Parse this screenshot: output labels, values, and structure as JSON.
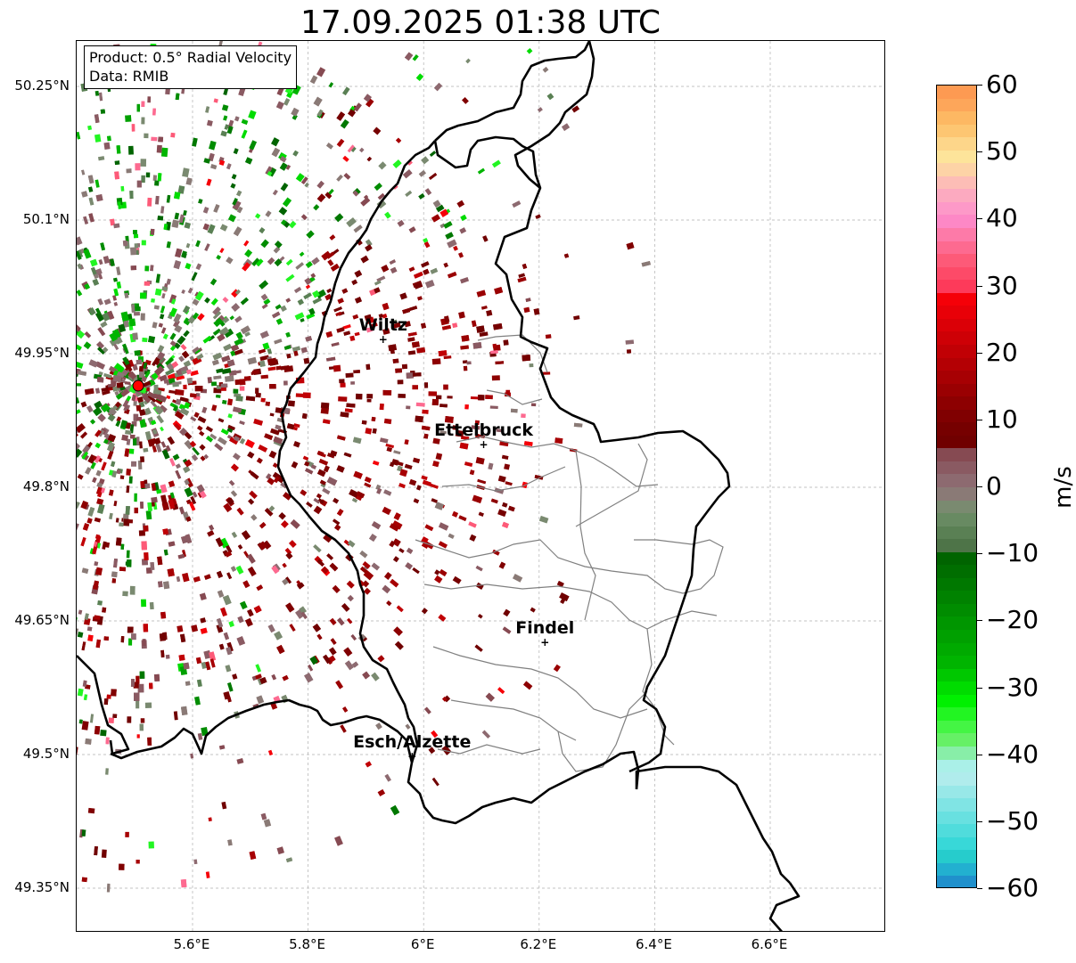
{
  "title": "17.09.2025 01:38 UTC",
  "info": {
    "product": "Product: 0.5° Radial Velocity",
    "data": "Data: RMIB"
  },
  "map": {
    "lon_range": [
      5.4,
      6.8
    ],
    "lat_range": [
      49.3,
      50.3
    ],
    "lat_ticks": [
      {
        "value": 50.25,
        "label": "50.25°N"
      },
      {
        "value": 50.1,
        "label": "50.1°N"
      },
      {
        "value": 49.95,
        "label": "49.95°N"
      },
      {
        "value": 49.8,
        "label": "49.8°N"
      },
      {
        "value": 49.65,
        "label": "49.65°N"
      },
      {
        "value": 49.5,
        "label": "49.5°N"
      },
      {
        "value": 49.35,
        "label": "49.35°N"
      }
    ],
    "lon_ticks": [
      {
        "value": 5.6,
        "label": "5.6°E"
      },
      {
        "value": 5.8,
        "label": "5.8°E"
      },
      {
        "value": 6.0,
        "label": "6°E"
      },
      {
        "value": 6.2,
        "label": "6.2°E"
      },
      {
        "value": 6.4,
        "label": "6.4°E"
      },
      {
        "value": 6.6,
        "label": "6.6°E"
      }
    ],
    "radar_site": {
      "lon": 5.506,
      "lat": 49.914,
      "icon": "red-circle-marker"
    },
    "cities": [
      {
        "name": "Wiltz",
        "lon": 5.93,
        "lat": 49.966
      },
      {
        "name": "Ettelbruck",
        "lon": 6.104,
        "lat": 49.848
      },
      {
        "name": "Findel",
        "lon": 6.21,
        "lat": 49.626
      },
      {
        "name": "Esch/Alzette",
        "lon": 5.98,
        "lat": 49.498
      }
    ]
  },
  "colorbar": {
    "unit": "m/s",
    "range": [
      -60,
      60
    ],
    "ticks": [
      {
        "value": 60,
        "label": "60"
      },
      {
        "value": 50,
        "label": "50"
      },
      {
        "value": 40,
        "label": "40"
      },
      {
        "value": 30,
        "label": "30"
      },
      {
        "value": 20,
        "label": "20"
      },
      {
        "value": 10,
        "label": "10"
      },
      {
        "value": 0,
        "label": "0"
      },
      {
        "value": -10,
        "label": "−10"
      },
      {
        "value": -20,
        "label": "−20"
      },
      {
        "value": -30,
        "label": "−30"
      },
      {
        "value": -40,
        "label": "−40"
      },
      {
        "value": -50,
        "label": "−50"
      },
      {
        "value": -60,
        "label": "−60"
      }
    ],
    "colors_top_to_bottom": [
      "#fd9a52",
      "#fda65a",
      "#fdb863",
      "#fdc672",
      "#fdd68a",
      "#fde49a",
      "#fdd3a6",
      "#fdbdb6",
      "#fcaac0",
      "#fd99c8",
      "#fd88c6",
      "#fd7aa8",
      "#fd6a90",
      "#fd5a78",
      "#fd4a68",
      "#fd3a5a",
      "#f50008",
      "#e80008",
      "#db0007",
      "#ce0006",
      "#c10005",
      "#b40004",
      "#a70003",
      "#9a0002",
      "#8d0001",
      "#800001",
      "#760000",
      "#700000",
      "#864a52",
      "#8a5a62",
      "#8d6a70",
      "#8a7a76",
      "#7a8a70",
      "#688a62",
      "#5a8054",
      "#4e7448",
      "#006400",
      "#006e00",
      "#007800",
      "#008200",
      "#008c00",
      "#009600",
      "#00a000",
      "#00aa00",
      "#00b400",
      "#00c800",
      "#00dc00",
      "#00f000",
      "#22f522",
      "#44f544",
      "#66f066",
      "#88eea8",
      "#aaf0e8",
      "#b0ecec",
      "#98e8e8",
      "#80e4e4",
      "#68e0e0",
      "#50dcdc",
      "#38d8d8",
      "#26cccc",
      "#22b0d0",
      "#2090cc"
    ]
  },
  "colors": {
    "border_country": "#000000",
    "border_canton": "#808080",
    "grid": "#b0b0b0",
    "radar_marker": "#ff0000"
  }
}
